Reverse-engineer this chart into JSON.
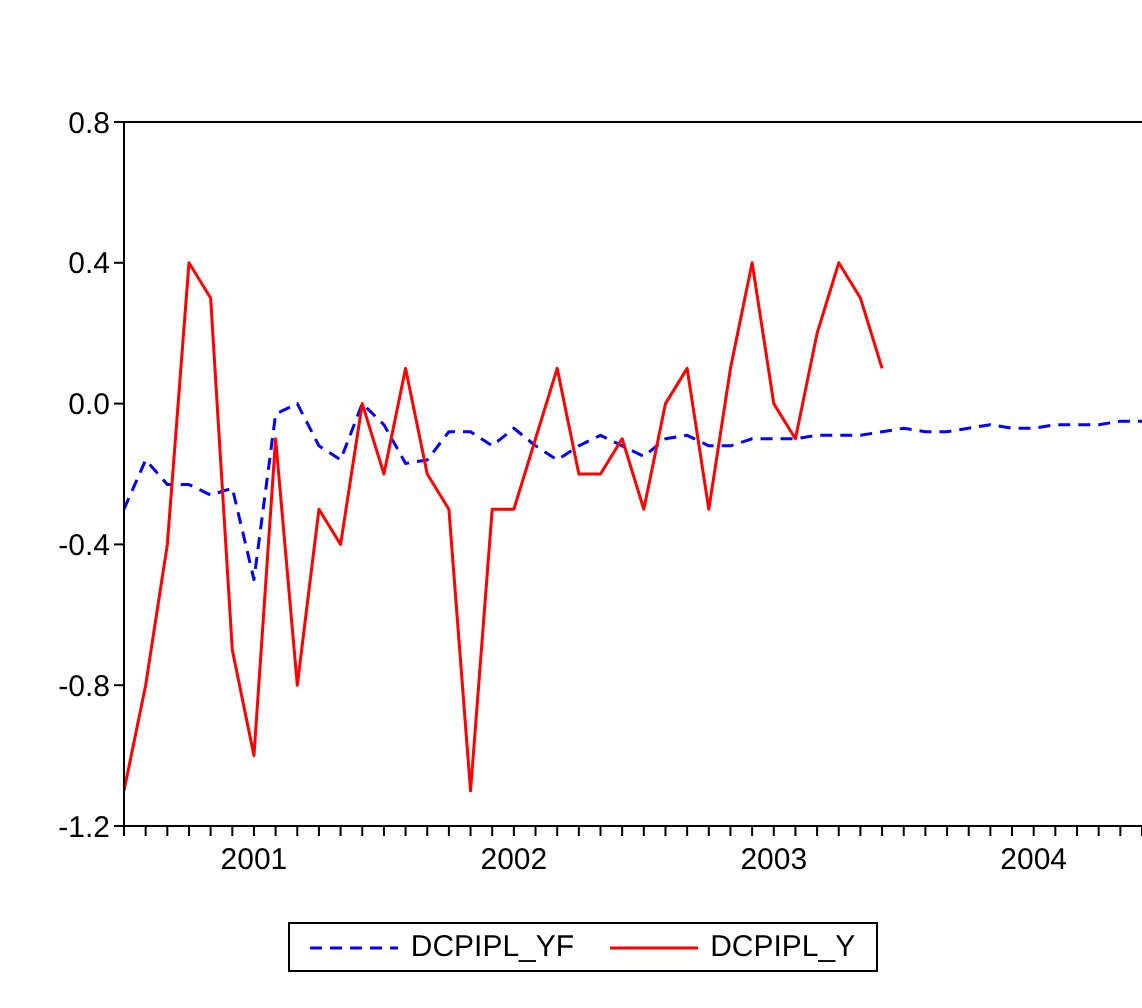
{
  "chart_data": {
    "type": "line",
    "x": [
      2001,
      2001.0833,
      2001.1667,
      2001.25,
      2001.3333,
      2001.4167,
      2001.5,
      2001.5833,
      2001.6667,
      2001.75,
      2001.8333,
      2001.9167,
      2002,
      2002.0833,
      2002.1667,
      2002.25,
      2002.3333,
      2002.4167,
      2002.5,
      2002.5833,
      2002.6667,
      2002.75,
      2002.8333,
      2002.9167,
      2003,
      2003.0833,
      2003.1667,
      2003.25,
      2003.3333,
      2003.4167,
      2003.5,
      2003.5833,
      2003.6667,
      2003.75,
      2003.8333,
      2003.9167,
      2004,
      2004.0833,
      2004.1667,
      2004.25,
      2004.3333,
      2004.4167,
      2004.5,
      2004.5833,
      2004.6667,
      2004.75,
      2004.8333,
      2004.9167
    ],
    "series": [
      {
        "name": "DCPIPL_YF",
        "color": "#0000ff",
        "line_style": "dashed",
        "values": [
          -0.3,
          -0.16,
          -0.23,
          -0.23,
          -0.26,
          -0.24,
          -0.5,
          -0.03,
          0.0,
          -0.12,
          -0.16,
          0.0,
          -0.06,
          -0.17,
          -0.16,
          -0.08,
          -0.08,
          -0.12,
          -0.07,
          -0.12,
          -0.16,
          -0.12,
          -0.09,
          -0.12,
          -0.15,
          -0.1,
          -0.09,
          -0.12,
          -0.12,
          -0.1,
          -0.1,
          -0.1,
          -0.09,
          -0.09,
          -0.09,
          -0.08,
          -0.07,
          -0.08,
          -0.08,
          -0.07,
          -0.06,
          -0.07,
          -0.07,
          -0.06,
          -0.06,
          -0.06,
          -0.05,
          -0.05
        ]
      },
      {
        "name": "DCPIPL_Y",
        "color": "#ff0000",
        "line_style": "solid",
        "values": [
          -1.1,
          -0.8,
          -0.4,
          0.4,
          0.3,
          -0.7,
          -1.0,
          -0.1,
          -0.8,
          -0.3,
          -0.4,
          0.0,
          -0.2,
          0.1,
          -0.2,
          -0.3,
          -1.1,
          -0.3,
          -0.3,
          -0.1,
          0.1,
          -0.2,
          -0.2,
          -0.1,
          -0.3,
          0.0,
          0.1,
          -0.3,
          0.1,
          0.4,
          0.0,
          -0.1,
          0.2,
          0.4,
          0.3,
          0.1,
          null,
          null,
          null,
          null,
          null,
          null,
          null,
          null,
          null,
          null,
          null,
          null
        ]
      }
    ],
    "xlim": [
      2001,
      2004.9167
    ],
    "xticks": [
      {
        "value": 2001,
        "label": null
      },
      {
        "value": 2001.0833,
        "label": null
      },
      {
        "value": 2001.1667,
        "label": null
      },
      {
        "value": 2001.25,
        "label": null
      },
      {
        "value": 2001.3333,
        "label": null
      },
      {
        "value": 2001.4167,
        "label": null
      },
      {
        "value": 2001.5,
        "label": "2001"
      },
      {
        "value": 2001.5833,
        "label": null
      },
      {
        "value": 2001.6667,
        "label": null
      },
      {
        "value": 2001.75,
        "label": null
      },
      {
        "value": 2001.8333,
        "label": null
      },
      {
        "value": 2001.9167,
        "label": null
      },
      {
        "value": 2002,
        "label": null
      },
      {
        "value": 2002.0833,
        "label": null
      },
      {
        "value": 2002.1667,
        "label": null
      },
      {
        "value": 2002.25,
        "label": null
      },
      {
        "value": 2002.3333,
        "label": null
      },
      {
        "value": 2002.4167,
        "label": null
      },
      {
        "value": 2002.5,
        "label": "2002"
      },
      {
        "value": 2002.5833,
        "label": null
      },
      {
        "value": 2002.6667,
        "label": null
      },
      {
        "value": 2002.75,
        "label": null
      },
      {
        "value": 2002.8333,
        "label": null
      },
      {
        "value": 2002.9167,
        "label": null
      },
      {
        "value": 2003,
        "label": null
      },
      {
        "value": 2003.0833,
        "label": null
      },
      {
        "value": 2003.1667,
        "label": null
      },
      {
        "value": 2003.25,
        "label": null
      },
      {
        "value": 2003.3333,
        "label": null
      },
      {
        "value": 2003.4167,
        "label": null
      },
      {
        "value": 2003.5,
        "label": "2003"
      },
      {
        "value": 2003.5833,
        "label": null
      },
      {
        "value": 2003.6667,
        "label": null
      },
      {
        "value": 2003.75,
        "label": null
      },
      {
        "value": 2003.8333,
        "label": null
      },
      {
        "value": 2003.9167,
        "label": null
      },
      {
        "value": 2004,
        "label": null
      },
      {
        "value": 2004.0833,
        "label": null
      },
      {
        "value": 2004.1667,
        "label": null
      },
      {
        "value": 2004.25,
        "label": null
      },
      {
        "value": 2004.3333,
        "label": null
      },
      {
        "value": 2004.4167,
        "label": null
      },
      {
        "value": 2004.5,
        "label": "2004"
      },
      {
        "value": 2004.5833,
        "label": null
      },
      {
        "value": 2004.6667,
        "label": null
      },
      {
        "value": 2004.75,
        "label": null
      },
      {
        "value": 2004.8333,
        "label": null
      },
      {
        "value": 2004.9167,
        "label": null
      }
    ],
    "ylim": [
      -1.2,
      0.8
    ],
    "yticks": [
      {
        "value": -1.2,
        "label": "-1.2"
      },
      {
        "value": -0.8,
        "label": "-0.8"
      },
      {
        "value": -0.4,
        "label": "-0.4"
      },
      {
        "value": 0,
        "label": "0.0"
      },
      {
        "value": 0.4,
        "label": "0.4"
      },
      {
        "value": 0.8,
        "label": "0.8"
      }
    ],
    "grid": false,
    "legend": "bottom",
    "marker": "none"
  }
}
